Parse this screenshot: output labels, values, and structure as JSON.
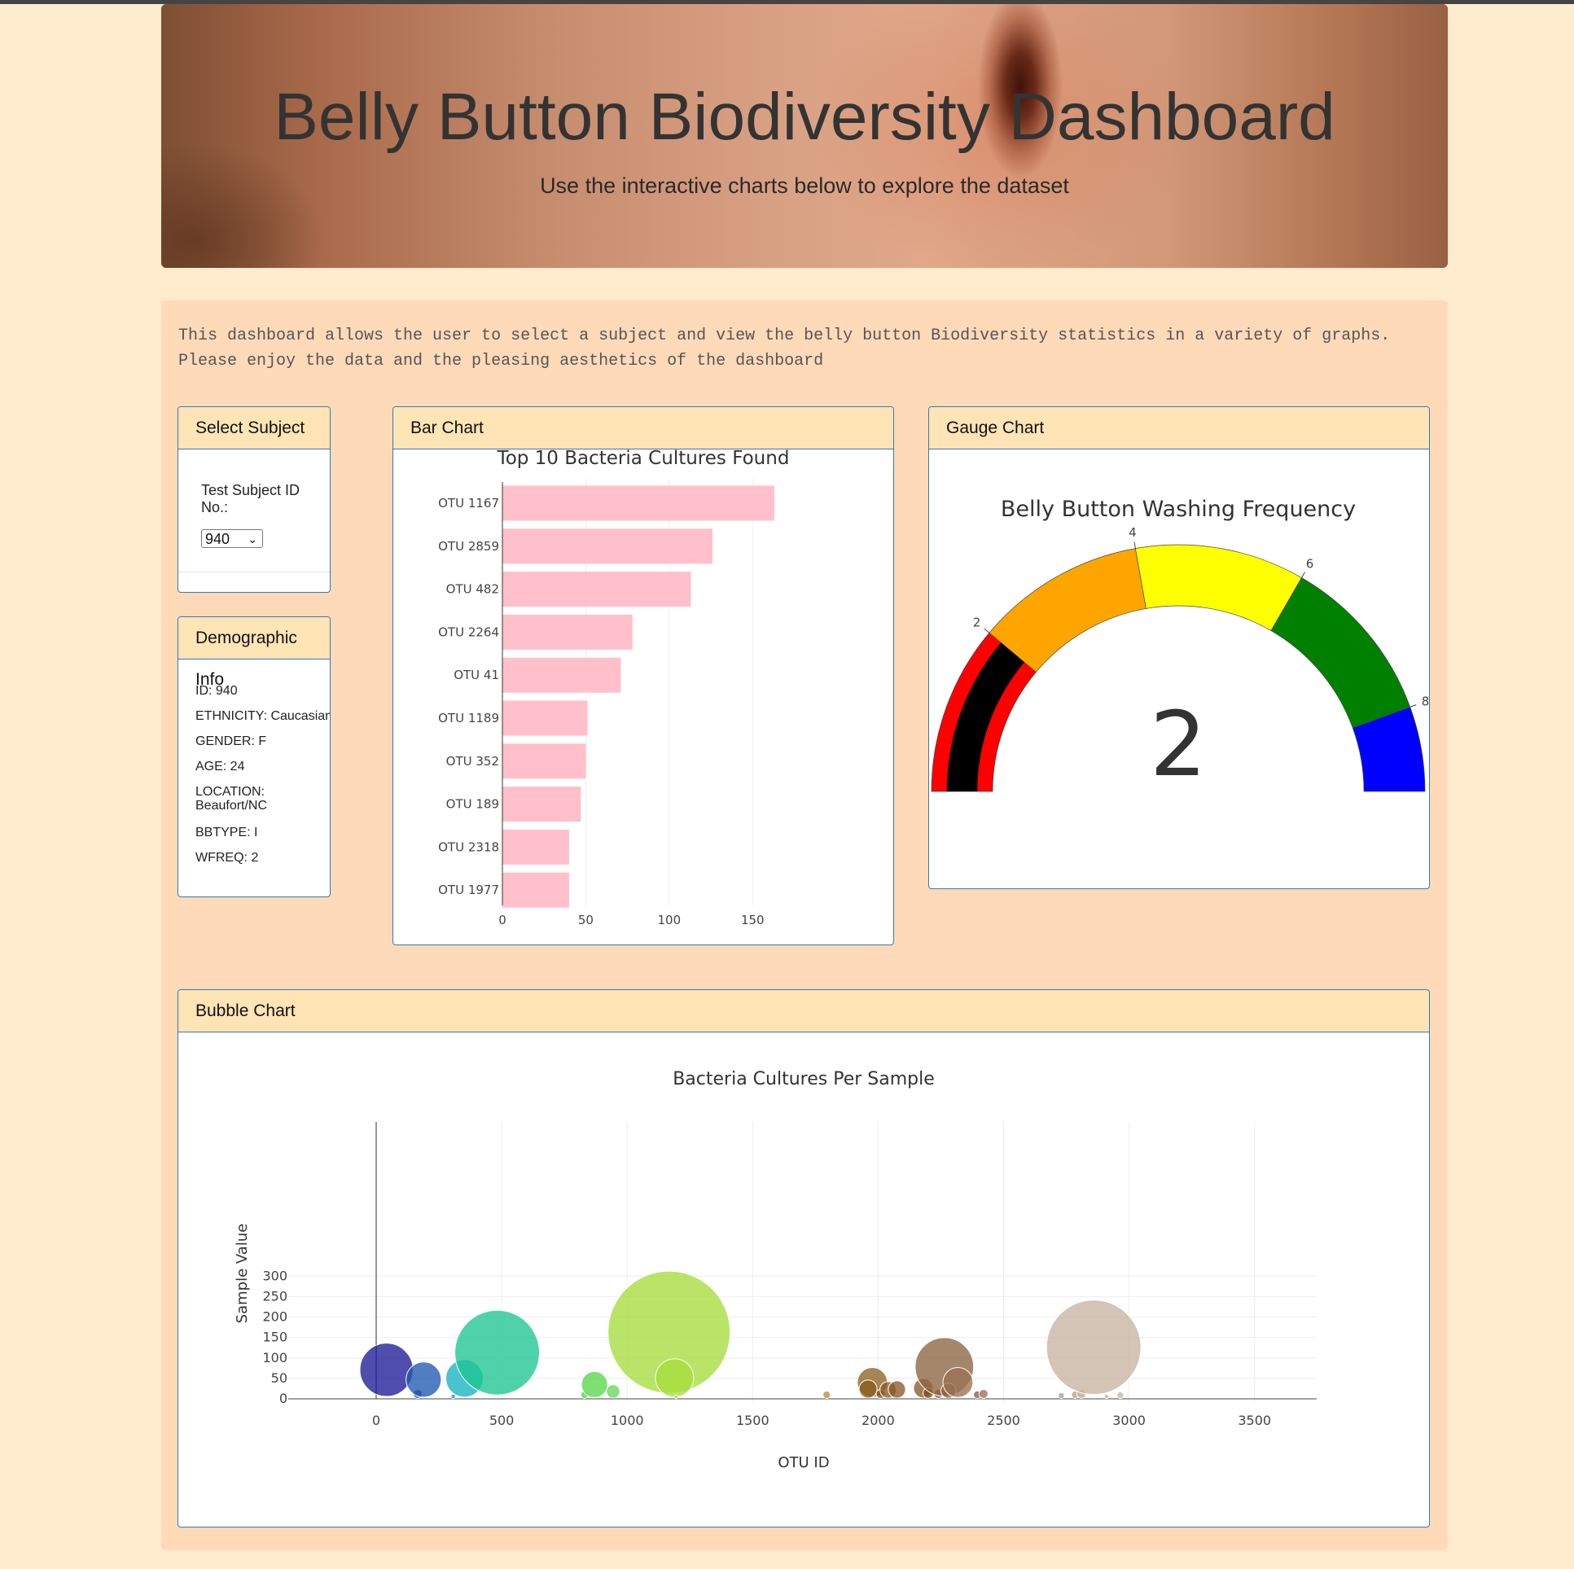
{
  "header": {
    "title": "Belly Button Biodiversity Dashboard",
    "subtitle": "Use the interactive charts below to explore the dataset"
  },
  "intro": "This dashboard allows the user to select a subject and view the belly button Biodiversity statistics in a variety of graphs. Please enjoy the data and the pleasing aesthetics of the dashboard",
  "panels": {
    "select_title": "Select Subject",
    "demo_title": "Demographic Info",
    "bar_title": "Bar Chart",
    "gauge_title": "Gauge Chart",
    "bubble_title": "Bubble Chart"
  },
  "select": {
    "label": "Test Subject ID No.:",
    "selected": "940"
  },
  "demographics": [
    "ID: 940",
    "ETHNICITY: Caucasian",
    "GENDER: F",
    "AGE: 24",
    "LOCATION: Beaufort/NC",
    "BBTYPE: I",
    "WFREQ: 2"
  ],
  "colors": {
    "page_bg": "#FFEBCD",
    "container_bg": "#FFDAB9",
    "panel_heading_bg": "#FFE4B5",
    "panel_border": "#337ab7",
    "bar_color": "#FFC0CB"
  },
  "chart_data": [
    {
      "type": "bar",
      "orientation": "horizontal",
      "title": "Top 10 Bacteria Cultures Found",
      "categories": [
        "OTU 1167",
        "OTU 2859",
        "OTU 482",
        "OTU 2264",
        "OTU 41",
        "OTU 1189",
        "OTU 352",
        "OTU 189",
        "OTU 2318",
        "OTU 1977"
      ],
      "values": [
        163,
        126,
        113,
        78,
        71,
        51,
        50,
        47,
        40,
        40
      ],
      "xticks": [
        0,
        50,
        100,
        150
      ],
      "xlim": [
        0,
        171
      ]
    },
    {
      "type": "gauge",
      "title": "Belly Button Washing Frequency",
      "value": 2,
      "range": [
        0,
        9
      ],
      "tick_labels": [
        "2",
        "4",
        "6",
        "8"
      ],
      "bands": [
        {
          "from": 0,
          "to": 2,
          "color": "#FF0000"
        },
        {
          "from": 2,
          "to": 4,
          "color": "#FFA500"
        },
        {
          "from": 4,
          "to": 6,
          "color": "#FFFF00"
        },
        {
          "from": 6,
          "to": 8,
          "color": "#008000"
        },
        {
          "from": 8,
          "to": 9,
          "color": "#0000FF"
        }
      ],
      "bar_color": "#000000"
    },
    {
      "type": "scatter",
      "subtype": "bubble",
      "title": "Bacteria Cultures Per Sample",
      "xlabel": "OTU ID",
      "ylabel": "Sample Value",
      "xlim": [
        -380,
        3750
      ],
      "ylim": [
        -10,
        316
      ],
      "xticks": [
        0,
        500,
        1000,
        1500,
        2000,
        2500,
        3000,
        3500
      ],
      "yticks": [
        0,
        50,
        100,
        150,
        200,
        250,
        300
      ],
      "grid": true,
      "points": [
        {
          "x": 41,
          "y": 71,
          "color": "#1e1b96"
        },
        {
          "x": 165,
          "y": 12,
          "color": "#233b9e"
        },
        {
          "x": 189,
          "y": 47,
          "color": "#1f5aae"
        },
        {
          "x": 307,
          "y": 6,
          "color": "#1f8fbf"
        },
        {
          "x": 352,
          "y": 50,
          "color": "#14b4c0"
        },
        {
          "x": 482,
          "y": 113,
          "color": "#1ec592"
        },
        {
          "x": 830,
          "y": 10,
          "color": "#52d44a"
        },
        {
          "x": 870,
          "y": 35,
          "color": "#5bd64a"
        },
        {
          "x": 944,
          "y": 18,
          "color": "#66d855"
        },
        {
          "x": 1167,
          "y": 163,
          "color": "#a6dc3c"
        },
        {
          "x": 1189,
          "y": 51,
          "color": "#a8dc3e"
        },
        {
          "x": 1195,
          "y": 5,
          "color": "#a8dc3e"
        },
        {
          "x": 1795,
          "y": 10,
          "color": "#b38f30"
        },
        {
          "x": 1977,
          "y": 40,
          "color": "#8c6424"
        },
        {
          "x": 1960,
          "y": 24,
          "color": "#8a5c1c"
        },
        {
          "x": 2010,
          "y": 12,
          "color": "#7e4f18"
        },
        {
          "x": 2040,
          "y": 22,
          "color": "#8a5a22"
        },
        {
          "x": 2075,
          "y": 23,
          "color": "#8a5a2a"
        },
        {
          "x": 2180,
          "y": 26,
          "color": "#8a5a2c"
        },
        {
          "x": 2200,
          "y": 14,
          "color": "#7e4a1a"
        },
        {
          "x": 2240,
          "y": 12,
          "color": "#8a5424"
        },
        {
          "x": 2264,
          "y": 78,
          "color": "#8c6440"
        },
        {
          "x": 2280,
          "y": 20,
          "color": "#8c5e38"
        },
        {
          "x": 2318,
          "y": 40,
          "color": "#9a7255"
        },
        {
          "x": 2395,
          "y": 10,
          "color": "#8c5a40"
        },
        {
          "x": 2420,
          "y": 12,
          "color": "#9a705a"
        },
        {
          "x": 2730,
          "y": 8,
          "color": "#b49a86"
        },
        {
          "x": 2785,
          "y": 10,
          "color": "#b8a08e"
        },
        {
          "x": 2810,
          "y": 12,
          "color": "#bca690"
        },
        {
          "x": 2859,
          "y": 126,
          "color": "#c8b4a0"
        },
        {
          "x": 2910,
          "y": 6,
          "color": "#c2ae9a"
        },
        {
          "x": 2965,
          "y": 9,
          "color": "#c6b29e"
        }
      ]
    }
  ]
}
